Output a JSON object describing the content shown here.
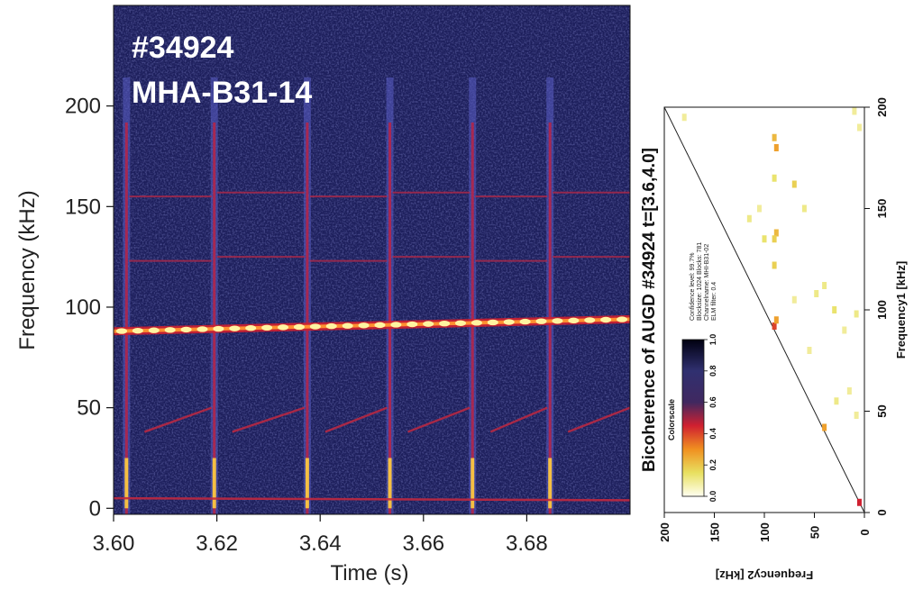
{
  "chart_data": [
    {
      "type": "heatmap",
      "overlay_title": [
        "#34924",
        "MHA-B31-14"
      ],
      "xlabel": "Time (s)",
      "ylabel": "Frequency (kHz)",
      "xlim": [
        3.6,
        3.7
      ],
      "ylim": [
        -3,
        250
      ],
      "x_ticks": [
        "3.60",
        "3.62",
        "3.64",
        "3.66",
        "3.68"
      ],
      "x_tick_values": [
        3.6,
        3.62,
        3.64,
        3.66,
        3.68
      ],
      "y_ticks": [
        "0",
        "50",
        "100",
        "150",
        "200"
      ],
      "y_tick_values": [
        0,
        50,
        100,
        150,
        200
      ],
      "background_color": "#1d1f5c",
      "elm_times": [
        3.6025,
        3.6195,
        3.6375,
        3.6535,
        3.6695,
        3.6845
      ],
      "main_mode": {
        "x": [
          3.6,
          3.7
        ],
        "y_start": 88,
        "y_end": 94
      },
      "upper_modes": [
        124,
        156
      ],
      "lower_mode": {
        "y_range": [
          38,
          50
        ]
      },
      "colors": {
        "low": "#1d1f5c",
        "mid": "#c0203e",
        "high": "#ffe050"
      }
    },
    {
      "type": "heatmap",
      "title": "Bicoherence of AUGD #34924 t=[3.6,4.0]",
      "xlabel": "Frequency2 [kHz]",
      "ylabel": "Frequency1 [kHz]",
      "xlim": [
        200,
        0
      ],
      "ylim": [
        0,
        200
      ],
      "x_ticks": [
        "200",
        "150",
        "100",
        "50",
        "0"
      ],
      "x_tick_values": [
        200,
        150,
        100,
        50,
        0
      ],
      "y_ticks": [
        "0",
        "50",
        "100",
        "150",
        "200"
      ],
      "y_tick_values": [
        0,
        50,
        100,
        150,
        200
      ],
      "meta": [
        "Confidence level: 99.7%",
        "Blocksize: 1024   Blocks: 781",
        "Channelname: MHI-B31-02",
        "ELM filter: 0.4"
      ],
      "colorscale": {
        "label": "Colorscale",
        "ticks": [
          "0.0",
          "0.2",
          "0.4",
          "0.6",
          "0.8",
          "1.0"
        ],
        "tick_values": [
          0.0,
          0.2,
          0.4,
          0.6,
          0.8,
          1.0
        ],
        "stops": [
          "#fffff0",
          "#e8e060",
          "#f09020",
          "#d02030",
          "#402860",
          "#303070",
          "#000010"
        ]
      },
      "points": [
        {
          "f2": 90,
          "f1": 185,
          "v": 0.25
        },
        {
          "f2": 88,
          "f1": 180,
          "v": 0.3
        },
        {
          "f2": 88,
          "f1": 138,
          "v": 0.25
        },
        {
          "f2": 90,
          "f1": 135,
          "v": 0.2
        },
        {
          "f2": 90,
          "f1": 92,
          "v": 0.45
        },
        {
          "f2": 88,
          "f1": 95,
          "v": 0.3
        },
        {
          "f2": 40,
          "f1": 42,
          "v": 0.3
        },
        {
          "f2": 180,
          "f1": 195,
          "v": 0.1
        },
        {
          "f2": 10,
          "f1": 198,
          "v": 0.1
        },
        {
          "f2": 5,
          "f1": 190,
          "v": 0.1
        },
        {
          "f2": 70,
          "f1": 162,
          "v": 0.2
        },
        {
          "f2": 90,
          "f1": 165,
          "v": 0.15
        },
        {
          "f2": 100,
          "f1": 135,
          "v": 0.15
        },
        {
          "f2": 60,
          "f1": 150,
          "v": 0.12
        },
        {
          "f2": 90,
          "f1": 122,
          "v": 0.2
        },
        {
          "f2": 48,
          "f1": 108,
          "v": 0.12
        },
        {
          "f2": 30,
          "f1": 100,
          "v": 0.15
        },
        {
          "f2": 20,
          "f1": 90,
          "v": 0.1
        },
        {
          "f2": 40,
          "f1": 112,
          "v": 0.12
        },
        {
          "f2": 55,
          "f1": 80,
          "v": 0.1
        },
        {
          "f2": 115,
          "f1": 145,
          "v": 0.12
        },
        {
          "f2": 8,
          "f1": 98,
          "v": 0.12
        },
        {
          "f2": 15,
          "f1": 60,
          "v": 0.1
        },
        {
          "f2": 28,
          "f1": 55,
          "v": 0.12
        },
        {
          "f2": 8,
          "f1": 48,
          "v": 0.1
        },
        {
          "f2": 5,
          "f1": 5,
          "v": 0.5
        },
        {
          "f2": 70,
          "f1": 105,
          "v": 0.1
        },
        {
          "f2": 105,
          "f1": 150,
          "v": 0.1
        }
      ],
      "diagonal": true
    }
  ]
}
